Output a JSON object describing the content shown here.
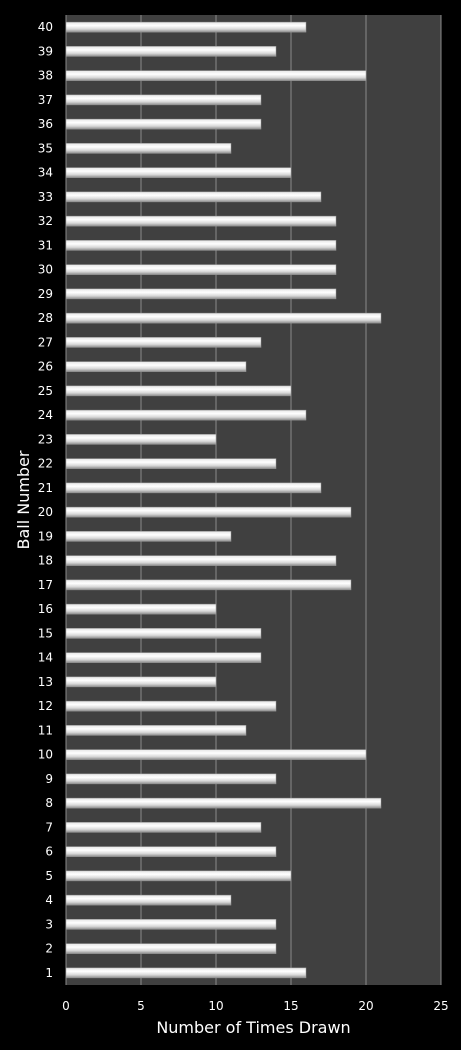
{
  "chart_data": {
    "type": "bar",
    "orientation": "horizontal",
    "xlabel": "Number of Times Drawn",
    "ylabel": "Ball Number",
    "xlim": [
      0,
      25
    ],
    "x_ticks": [
      "0",
      "5",
      "10",
      "15",
      "20",
      "25"
    ],
    "grid": true,
    "categories": [
      "1",
      "2",
      "3",
      "4",
      "5",
      "6",
      "7",
      "8",
      "9",
      "10",
      "11",
      "12",
      "13",
      "14",
      "15",
      "16",
      "17",
      "18",
      "19",
      "20",
      "21",
      "22",
      "23",
      "24",
      "25",
      "26",
      "27",
      "28",
      "29",
      "30",
      "31",
      "32",
      "33",
      "34",
      "35",
      "36",
      "37",
      "38",
      "39",
      "40"
    ],
    "values": [
      16,
      14,
      14,
      11,
      15,
      14,
      13,
      21,
      14,
      20,
      12,
      14,
      10,
      13,
      13,
      10,
      19,
      18,
      11,
      19,
      17,
      14,
      10,
      16,
      15,
      12,
      13,
      21,
      18,
      18,
      18,
      18,
      17,
      15,
      11,
      13,
      13,
      20,
      14,
      16
    ],
    "colors": {
      "page_background": "#000000",
      "plot_background": "#404040",
      "gridline": "#8a8a8a",
      "bar_light": "#ffffff",
      "bar_mid": "#d8d8d8",
      "bar_dark": "#8c8c8c",
      "text": "#ffffff"
    }
  }
}
